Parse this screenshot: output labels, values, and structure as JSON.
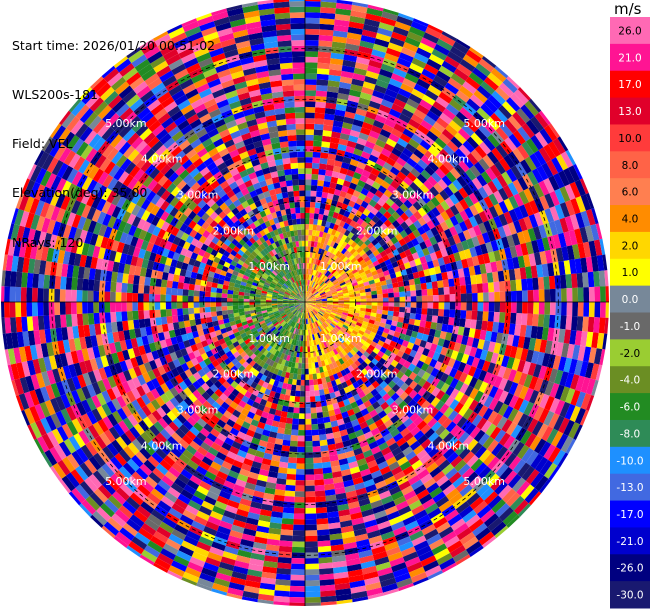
{
  "info": {
    "start_time": "Start time: 2026/01/20 00:51:02",
    "instrument": "WLS200s-181",
    "field": "Field: VEL",
    "elevation": "Elevation(deg): 35.00",
    "nrays": "NRays: 120"
  },
  "colorbar": {
    "unit": "m/s",
    "ticks": [
      "26.0",
      "21.0",
      "17.0",
      "13.0",
      "10.0",
      "8.0",
      "6.0",
      "4.0",
      "2.0",
      "1.0",
      "0.0",
      "-1.0",
      "-2.0",
      "-4.0",
      "-6.0",
      "-8.0",
      "-10.0",
      "-13.0",
      "-17.0",
      "-21.0",
      "-26.0",
      "-30.0"
    ],
    "colors": [
      "#ff69b4",
      "#ff1493",
      "#ff0000",
      "#e0002a",
      "#ff3b3b",
      "#ff6347",
      "#ff7f50",
      "#ff8c00",
      "#ffd700",
      "#ffff00",
      "#778899",
      "#696969",
      "#9acd32",
      "#6b8e23",
      "#228b22",
      "#2e8b57",
      "#1e90ff",
      "#4169e1",
      "#0000ff",
      "#0000cd",
      "#000080",
      "#191970"
    ],
    "bounds": [
      -30,
      -26,
      -21,
      -17,
      -13,
      -10,
      -8,
      -6,
      -4,
      -2,
      -1,
      0,
      1,
      2,
      4,
      6,
      8,
      10,
      13,
      17,
      21,
      26,
      30
    ]
  },
  "chart_data": {
    "type": "heatmap",
    "title": "",
    "field": "VEL",
    "units": "m/s",
    "nrays": 120,
    "elevation_deg": 35.0,
    "range_rings_km": [
      "1.00km",
      "2.00km",
      "3.00km",
      "4.00km",
      "5.00km"
    ],
    "range_ring_values_km": [
      1,
      2,
      3,
      4,
      5
    ],
    "max_range_km": 6.0,
    "pattern": "Near-field (<1.5 km) dominated by small values: green/olive/gray on the west side and yellow/orange on the east side; beyond ~1.5 km values are noisy and span the full -30 to +30 m/s range."
  }
}
